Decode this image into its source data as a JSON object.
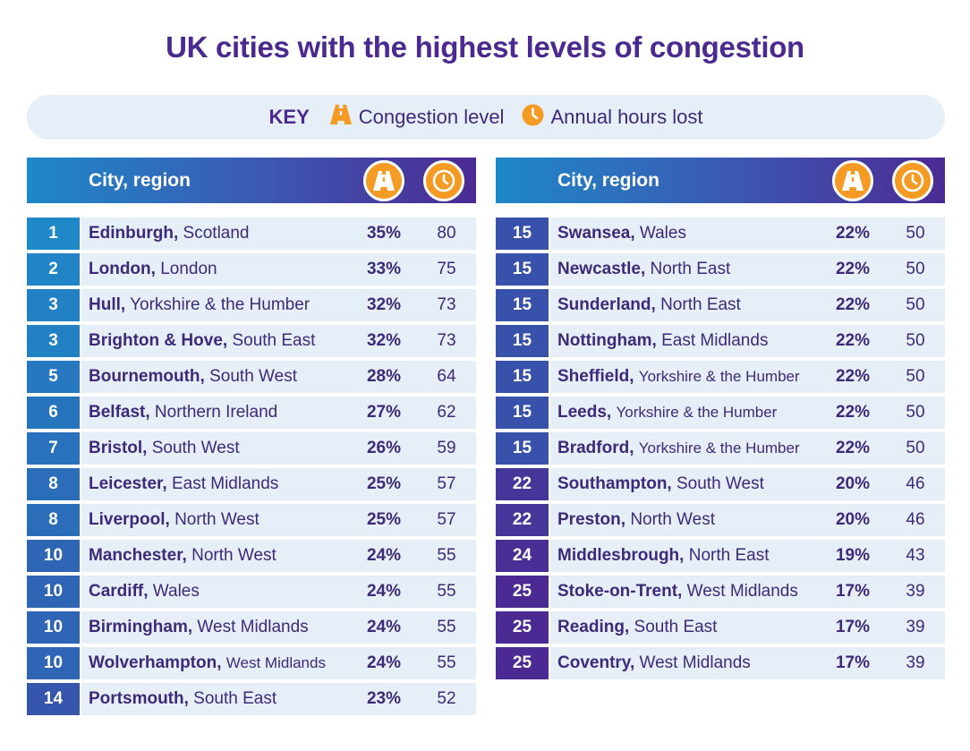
{
  "title": "UK cities with the highest levels of congestion",
  "key": {
    "label": "KEY",
    "congestion_label": "Congestion level",
    "hours_label": "Annual hours lost",
    "congestion_icon": "road-icon",
    "hours_icon": "clock-icon"
  },
  "colors": {
    "title": "#4b2991",
    "accent_orange": "#f59a23",
    "row_bg": "#e6eef7",
    "header_gradient_start": "#1e88c9",
    "header_gradient_end": "#4b2a93"
  },
  "left_table": {
    "header": "City, region",
    "rows": [
      {
        "rank": "1",
        "city": "Edinburgh,",
        "region": "Scotland",
        "level": "35%",
        "hours": "80"
      },
      {
        "rank": "2",
        "city": "London,",
        "region": "London",
        "level": "33%",
        "hours": "75"
      },
      {
        "rank": "3",
        "city": "Hull,",
        "region": "Yorkshire & the Humber",
        "level": "32%",
        "hours": "73"
      },
      {
        "rank": "3",
        "city": "Brighton & Hove,",
        "region": "South East",
        "level": "32%",
        "hours": "73"
      },
      {
        "rank": "5",
        "city": "Bournemouth,",
        "region": "South West",
        "level": "28%",
        "hours": "64"
      },
      {
        "rank": "6",
        "city": "Belfast,",
        "region": "Northern Ireland",
        "level": "27%",
        "hours": "62"
      },
      {
        "rank": "7",
        "city": "Bristol,",
        "region": "South West",
        "level": "26%",
        "hours": "59"
      },
      {
        "rank": "8",
        "city": "Leicester,",
        "region": "East Midlands",
        "level": "25%",
        "hours": "57"
      },
      {
        "rank": "8",
        "city": "Liverpool,",
        "region": "North West",
        "level": "25%",
        "hours": "57"
      },
      {
        "rank": "10",
        "city": "Manchester,",
        "region": "North West",
        "level": "24%",
        "hours": "55"
      },
      {
        "rank": "10",
        "city": "Cardiff,",
        "region": "Wales",
        "level": "24%",
        "hours": "55"
      },
      {
        "rank": "10",
        "city": "Birmingham,",
        "region": "West Midlands",
        "level": "24%",
        "hours": "55"
      },
      {
        "rank": "10",
        "city": "Wolverhampton,",
        "region": "West Midlands",
        "level": "24%",
        "hours": "55"
      },
      {
        "rank": "14",
        "city": "Portsmouth,",
        "region": "South East",
        "level": "23%",
        "hours": "52"
      }
    ]
  },
  "right_table": {
    "header": "City, region",
    "rows": [
      {
        "rank": "15",
        "city": "Swansea,",
        "region": "Wales",
        "level": "22%",
        "hours": "50"
      },
      {
        "rank": "15",
        "city": "Newcastle,",
        "region": "North East",
        "level": "22%",
        "hours": "50"
      },
      {
        "rank": "15",
        "city": "Sunderland,",
        "region": "North East",
        "level": "22%",
        "hours": "50"
      },
      {
        "rank": "15",
        "city": "Nottingham,",
        "region": "East Midlands",
        "level": "22%",
        "hours": "50"
      },
      {
        "rank": "15",
        "city": "Sheffield,",
        "region": "Yorkshire & the Humber",
        "level": "22%",
        "hours": "50"
      },
      {
        "rank": "15",
        "city": "Leeds,",
        "region": "Yorkshire & the Humber",
        "level": "22%",
        "hours": "50"
      },
      {
        "rank": "15",
        "city": "Bradford,",
        "region": "Yorkshire & the Humber",
        "level": "22%",
        "hours": "50"
      },
      {
        "rank": "22",
        "city": "Southampton,",
        "region": "South West",
        "level": "20%",
        "hours": "46"
      },
      {
        "rank": "22",
        "city": "Preston,",
        "region": "North West",
        "level": "20%",
        "hours": "46"
      },
      {
        "rank": "24",
        "city": "Middlesbrough,",
        "region": "North East",
        "level": "19%",
        "hours": "43"
      },
      {
        "rank": "25",
        "city": "Stoke-on-Trent,",
        "region": "West Midlands",
        "level": "17%",
        "hours": "39"
      },
      {
        "rank": "25",
        "city": "Reading,",
        "region": "South East",
        "level": "17%",
        "hours": "39"
      },
      {
        "rank": "25",
        "city": "Coventry,",
        "region": "West Midlands",
        "level": "17%",
        "hours": "39"
      }
    ]
  }
}
